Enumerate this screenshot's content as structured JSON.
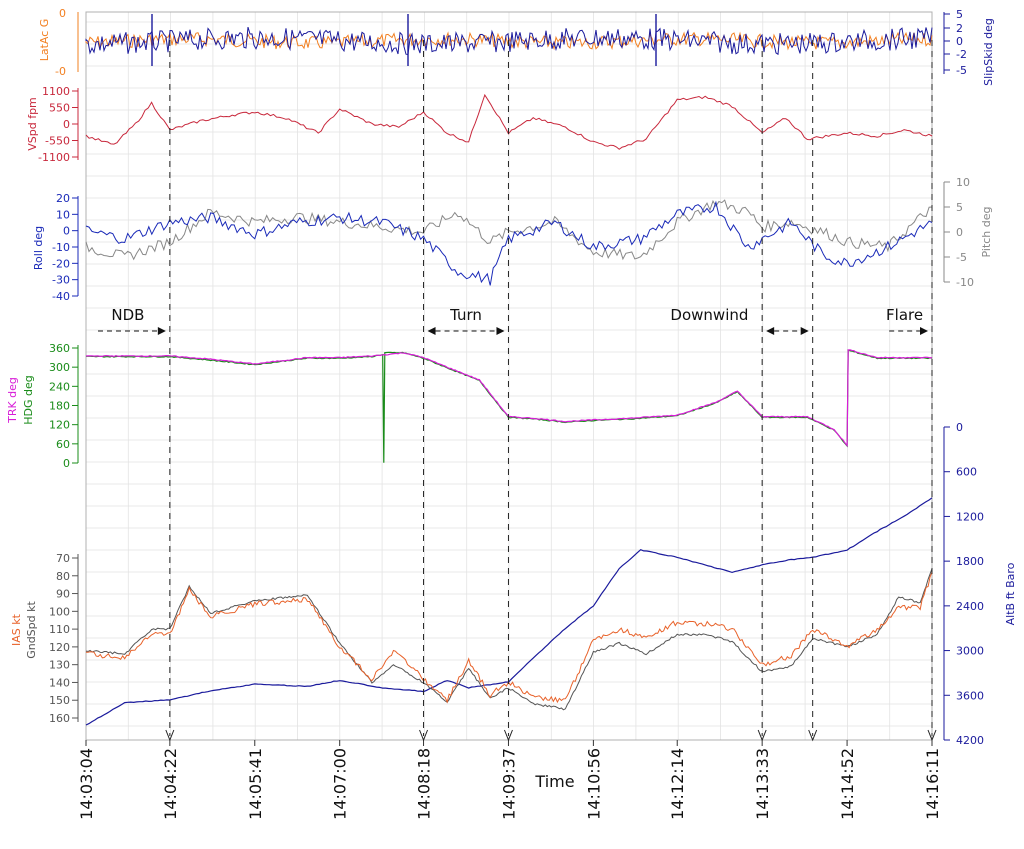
{
  "chart_data": [
    {
      "type": "line",
      "panel": "lateral",
      "left_axis": {
        "label": "LatAc G",
        "color": "#f28022",
        "ticks": [
          "0",
          "-0"
        ],
        "ylim": [
          -0.5,
          0.5
        ]
      },
      "right_axis": {
        "label": "SlipSkid deg",
        "color": "#1a1a9c",
        "ticks": [
          "5",
          "2",
          "0",
          "-2",
          "-5"
        ],
        "ylim": [
          -5,
          5
        ]
      },
      "series": [
        {
          "name": "LatAc G",
          "axis": "left",
          "color": "#f28022"
        },
        {
          "name": "SlipSkid deg",
          "axis": "right",
          "color": "#1a1a9c"
        }
      ]
    },
    {
      "type": "line",
      "panel": "vertical_speed",
      "left_axis": {
        "label": "VSpd fpm",
        "color": "#c8283c",
        "ticks": [
          "1100",
          "550",
          "0",
          "-550",
          "-1100"
        ],
        "ylim": [
          -1200,
          1200
        ]
      },
      "series": [
        {
          "name": "VSpd fpm",
          "axis": "left",
          "color": "#c8283c",
          "x": [
            "14:03:04",
            "14:03:30",
            "14:03:50",
            "14:04:05",
            "14:04:22",
            "14:04:50",
            "14:05:20",
            "14:05:41",
            "14:06:10",
            "14:06:40",
            "14:07:00",
            "14:07:30",
            "14:07:55",
            "14:08:18",
            "14:08:40",
            "14:09:00",
            "14:09:15",
            "14:09:37",
            "14:10:00",
            "14:10:30",
            "14:10:56",
            "14:11:20",
            "14:11:45",
            "14:12:14",
            "14:12:40",
            "14:13:05",
            "14:13:33",
            "14:13:55",
            "14:14:15",
            "14:14:52",
            "14:15:20",
            "14:15:45",
            "14:16:11"
          ],
          "values": [
            -400,
            -700,
            0,
            700,
            -200,
            100,
            300,
            400,
            200,
            -300,
            500,
            0,
            -100,
            400,
            -300,
            -600,
            1000,
            -300,
            200,
            -100,
            -600,
            -800,
            -500,
            800,
            900,
            600,
            -300,
            200,
            -500,
            -300,
            -400,
            -200,
            -400
          ]
        }
      ]
    },
    {
      "type": "line",
      "panel": "attitude",
      "left_axis": {
        "label": "Roll deg",
        "color": "#1a2ab8",
        "ticks": [
          "20",
          "10",
          "0",
          "-10",
          "-20",
          "-30",
          "-40"
        ],
        "ylim": [
          -40,
          20
        ]
      },
      "right_axis": {
        "label": "Pitch deg",
        "color": "#888888",
        "ticks": [
          "10",
          "5",
          "0",
          "-5",
          "-10"
        ],
        "ylim": [
          -10,
          10
        ]
      },
      "series": [
        {
          "name": "Roll deg",
          "axis": "left",
          "color": "#1a2ab8",
          "x": [
            "14:03:04",
            "14:03:40",
            "14:04:22",
            "14:05:00",
            "14:05:41",
            "14:06:20",
            "14:07:00",
            "14:07:40",
            "14:08:18",
            "14:08:50",
            "14:09:20",
            "14:09:37",
            "14:10:20",
            "14:10:56",
            "14:11:40",
            "14:12:14",
            "14:12:50",
            "14:13:20",
            "14:13:33",
            "14:14:00",
            "14:14:30",
            "14:14:52",
            "14:15:30",
            "14:16:11"
          ],
          "values": [
            0,
            -5,
            5,
            8,
            -2,
            5,
            8,
            5,
            -5,
            -25,
            -30,
            -5,
            5,
            -10,
            -5,
            10,
            15,
            -10,
            -5,
            5,
            -15,
            -20,
            -10,
            5
          ]
        },
        {
          "name": "Pitch deg",
          "axis": "right",
          "color": "#888888",
          "x": [
            "14:03:04",
            "14:03:40",
            "14:04:22",
            "14:05:00",
            "14:05:41",
            "14:06:20",
            "14:07:00",
            "14:07:40",
            "14:08:18",
            "14:08:50",
            "14:09:20",
            "14:09:37",
            "14:10:20",
            "14:10:56",
            "14:11:40",
            "14:12:14",
            "14:12:50",
            "14:13:20",
            "14:13:33",
            "14:14:00",
            "14:14:30",
            "14:14:52",
            "14:15:30",
            "14:16:11"
          ],
          "values": [
            -3,
            -5,
            -2,
            4,
            2,
            3,
            2,
            1,
            0,
            4,
            -2,
            0,
            2,
            -4,
            -5,
            2,
            6,
            4,
            1,
            2,
            0,
            -2,
            -3,
            5
          ]
        }
      ]
    },
    {
      "type": "line",
      "panel": "heading",
      "left_axis": {
        "labels": [
          {
            "text": "TRK deg",
            "color": "#d81cd8"
          },
          {
            "text": "HDG deg",
            "color": "#1a8c1a"
          }
        ],
        "ticks": [
          "360",
          "300",
          "240",
          "180",
          "120",
          "60",
          "0"
        ],
        "ylim": [
          0,
          360
        ]
      },
      "annotations": [
        {
          "text": "NDB",
          "x_from": "14:03:04",
          "x_to": "14:04:22"
        },
        {
          "text": "Turn",
          "x_from": "14:08:18",
          "x_to": "14:09:37"
        },
        {
          "text": "Downwind",
          "x_from": "14:13:33",
          "x_to": "14:14:20"
        },
        {
          "text": "Flare",
          "x_from": "14:15:20",
          "x_to": "14:16:11"
        }
      ],
      "series": [
        {
          "name": "TRK deg",
          "color": "#d81cd8",
          "x": [
            "14:03:04",
            "14:04:22",
            "14:05:00",
            "14:05:41",
            "14:06:30",
            "14:07:00",
            "14:07:30",
            "14:08:00",
            "14:08:18",
            "14:08:40",
            "14:09:10",
            "14:09:37",
            "14:10:00",
            "14:10:30",
            "14:10:56",
            "14:11:30",
            "14:12:14",
            "14:12:50",
            "14:13:10",
            "14:13:33",
            "14:14:15",
            "14:14:40",
            "14:14:52",
            "14:14:53",
            "14:15:20",
            "14:16:11"
          ],
          "values": [
            335,
            335,
            325,
            310,
            330,
            330,
            335,
            345,
            330,
            300,
            260,
            145,
            140,
            130,
            135,
            140,
            150,
            190,
            225,
            145,
            145,
            105,
            55,
            355,
            330,
            330
          ]
        },
        {
          "name": "HDG deg",
          "color": "#1a8c1a",
          "x": [
            "14:03:04",
            "14:04:22",
            "14:05:00",
            "14:05:41",
            "14:06:30",
            "14:07:00",
            "14:07:30",
            "14:07:40",
            "14:07:41",
            "14:07:42",
            "14:08:00",
            "14:08:18",
            "14:08:40",
            "14:09:10",
            "14:09:37",
            "14:10:00",
            "14:10:30",
            "14:10:56",
            "14:11:30",
            "14:12:14",
            "14:12:50",
            "14:13:10",
            "14:13:33",
            "14:14:15",
            "14:14:40",
            "14:14:52",
            "14:14:53",
            "14:15:20",
            "14:16:11"
          ],
          "values": [
            333,
            333,
            322,
            308,
            328,
            328,
            333,
            340,
            0,
            345,
            345,
            328,
            298,
            258,
            143,
            138,
            128,
            133,
            138,
            148,
            188,
            223,
            143,
            143,
            103,
            53,
            353,
            328,
            328
          ]
        }
      ]
    },
    {
      "type": "line",
      "panel": "speed_altitude",
      "left_axis": {
        "labels": [
          {
            "text": "IAS kt",
            "color": "#e8622a"
          },
          {
            "text": "GndSpd kt",
            "color": "#555555"
          }
        ],
        "ticks": [
          "160",
          "150",
          "140",
          "130",
          "120",
          "110",
          "100",
          "90",
          "80",
          "70"
        ],
        "ylim": [
          60,
          160
        ]
      },
      "right_axis": {
        "label": "AltB ft Baro",
        "color": "#1a1a9c",
        "ticks": [
          "4200",
          "3600",
          "3000",
          "2400",
          "1800",
          "1200",
          "600",
          "0"
        ],
        "ylim": [
          0,
          4200
        ]
      },
      "xlabel": "Time",
      "x_ticks": [
        "14:03:04",
        "14:04:22",
        "14:05:41",
        "14:07:00",
        "14:08:18",
        "14:09:37",
        "14:10:56",
        "14:12:14",
        "14:13:33",
        "14:14:52",
        "14:16:11"
      ],
      "event_times": [
        "14:04:22",
        "14:08:18",
        "14:09:37",
        "14:13:33",
        "14:14:20",
        "14:16:11"
      ],
      "series": [
        {
          "name": "IAS kt",
          "axis": "left",
          "color": "#e8622a",
          "x": [
            "14:03:04",
            "14:03:40",
            "14:04:05",
            "14:04:22",
            "14:04:40",
            "14:05:00",
            "14:05:41",
            "14:06:30",
            "14:07:00",
            "14:07:30",
            "14:07:50",
            "14:08:18",
            "14:08:40",
            "14:09:00",
            "14:09:20",
            "14:09:37",
            "14:10:00",
            "14:10:30",
            "14:10:56",
            "14:11:20",
            "14:11:45",
            "14:12:14",
            "14:12:40",
            "14:13:05",
            "14:13:33",
            "14:14:00",
            "14:14:20",
            "14:14:52",
            "14:15:20",
            "14:15:40",
            "14:16:00",
            "14:16:11"
          ],
          "values": [
            124,
            126,
            113,
            113,
            88,
            103,
            96,
            93,
            120,
            138,
            122,
            138,
            150,
            128,
            147,
            140,
            148,
            150,
            116,
            110,
            115,
            106,
            107,
            110,
            130,
            125,
            110,
            120,
            110,
            98,
            98,
            78
          ]
        },
        {
          "name": "GndSpd kt",
          "axis": "left",
          "color": "#555555",
          "x": [
            "14:03:04",
            "14:03:40",
            "14:04:05",
            "14:04:22",
            "14:04:40",
            "14:05:00",
            "14:05:41",
            "14:06:30",
            "14:07:00",
            "14:07:30",
            "14:07:50",
            "14:08:18",
            "14:08:40",
            "14:09:00",
            "14:09:20",
            "14:09:37",
            "14:10:00",
            "14:10:30",
            "14:10:56",
            "14:11:20",
            "14:11:45",
            "14:12:14",
            "14:12:40",
            "14:13:05",
            "14:13:33",
            "14:14:00",
            "14:14:20",
            "14:14:52",
            "14:15:20",
            "14:15:40",
            "14:16:00",
            "14:16:11"
          ],
          "values": [
            122,
            124,
            110,
            110,
            86,
            101,
            94,
            91,
            118,
            140,
            130,
            140,
            151,
            132,
            149,
            143,
            152,
            155,
            123,
            118,
            124,
            113,
            113,
            117,
            134,
            131,
            115,
            120,
            113,
            92,
            95,
            76
          ]
        },
        {
          "name": "AltB ft Baro",
          "axis": "right",
          "color": "#1a1a9c",
          "x": [
            "14:03:04",
            "14:03:40",
            "14:04:22",
            "14:05:00",
            "14:05:41",
            "14:06:30",
            "14:07:00",
            "14:07:40",
            "14:08:18",
            "14:08:40",
            "14:09:00",
            "14:09:37",
            "14:10:00",
            "14:10:30",
            "14:10:56",
            "14:11:20",
            "14:11:40",
            "14:12:14",
            "14:12:40",
            "14:13:05",
            "14:13:33",
            "14:14:00",
            "14:14:20",
            "14:14:52",
            "14:15:20",
            "14:15:45",
            "14:16:11"
          ],
          "values": [
            4000,
            3700,
            3660,
            3540,
            3450,
            3480,
            3400,
            3500,
            3550,
            3400,
            3500,
            3420,
            3100,
            2700,
            2400,
            1900,
            1650,
            1750,
            1850,
            1950,
            1850,
            1780,
            1750,
            1650,
            1400,
            1200,
            950
          ]
        }
      ]
    }
  ]
}
